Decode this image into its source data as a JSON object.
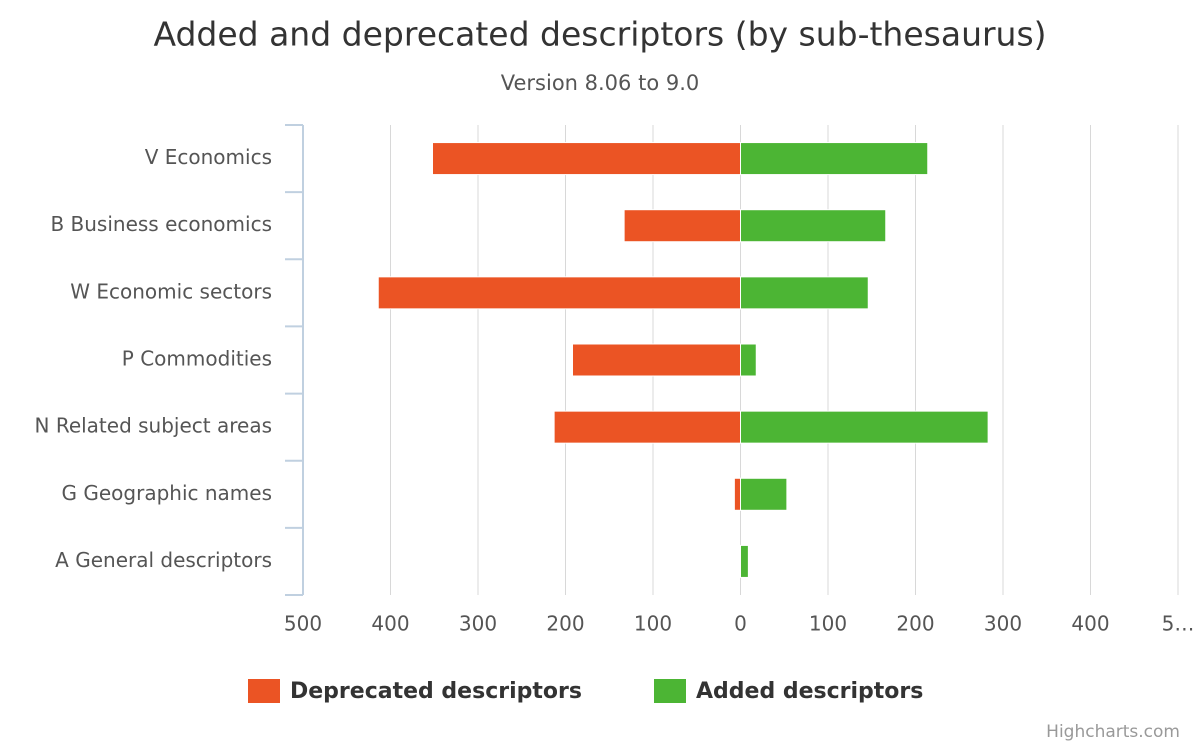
{
  "chart_data": {
    "type": "bar",
    "title": "Added and deprecated descriptors (by sub-thesaurus)",
    "subtitle": "Version 8.06 to 9.0",
    "categories": [
      "V Economics",
      "B Business economics",
      "W Economic sectors",
      "P Commodities",
      "N Related subject areas",
      "G Geographic names",
      "A General descriptors"
    ],
    "series": [
      {
        "name": "Deprecated descriptors",
        "color": "#eb5424",
        "values": [
          -352,
          -133,
          -414,
          -192,
          -213,
          -7,
          0
        ]
      },
      {
        "name": "Added descriptors",
        "color": "#4cb534",
        "values": [
          214,
          166,
          146,
          18,
          283,
          53,
          9
        ]
      }
    ],
    "xlim": [
      -500,
      500
    ],
    "xticks": [
      {
        "value": -500,
        "label": "500"
      },
      {
        "value": -400,
        "label": "400"
      },
      {
        "value": -300,
        "label": "300"
      },
      {
        "value": -200,
        "label": "200"
      },
      {
        "value": -100,
        "label": "100"
      },
      0,
      100,
      200,
      300,
      400,
      {
        "value": 500,
        "label": "5…"
      }
    ],
    "grid": true,
    "credits": "Highcharts.com"
  }
}
